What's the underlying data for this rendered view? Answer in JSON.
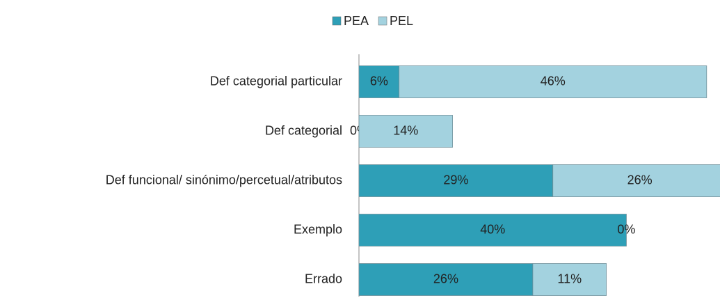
{
  "chart_data": {
    "type": "stacked-bar-horizontal",
    "categories": [
      "Def categorial particular",
      "Def categorial",
      "Def funcional/ sinónimo/percetual/atributos",
      "Exemplo",
      "Errado"
    ],
    "series": [
      {
        "name": "PEA",
        "color": "#2e9fb7",
        "values": [
          6,
          0,
          29,
          40,
          26
        ],
        "value_labels": [
          "6%",
          "0%",
          "29%",
          "40%",
          "26%"
        ]
      },
      {
        "name": "PEL",
        "color": "#a3d2df",
        "values": [
          46,
          14,
          26,
          0,
          11
        ],
        "value_labels": [
          "46%",
          "14%",
          "26%",
          "0%",
          "11%"
        ]
      }
    ],
    "xlim": [
      0,
      54
    ],
    "legend": "top"
  }
}
